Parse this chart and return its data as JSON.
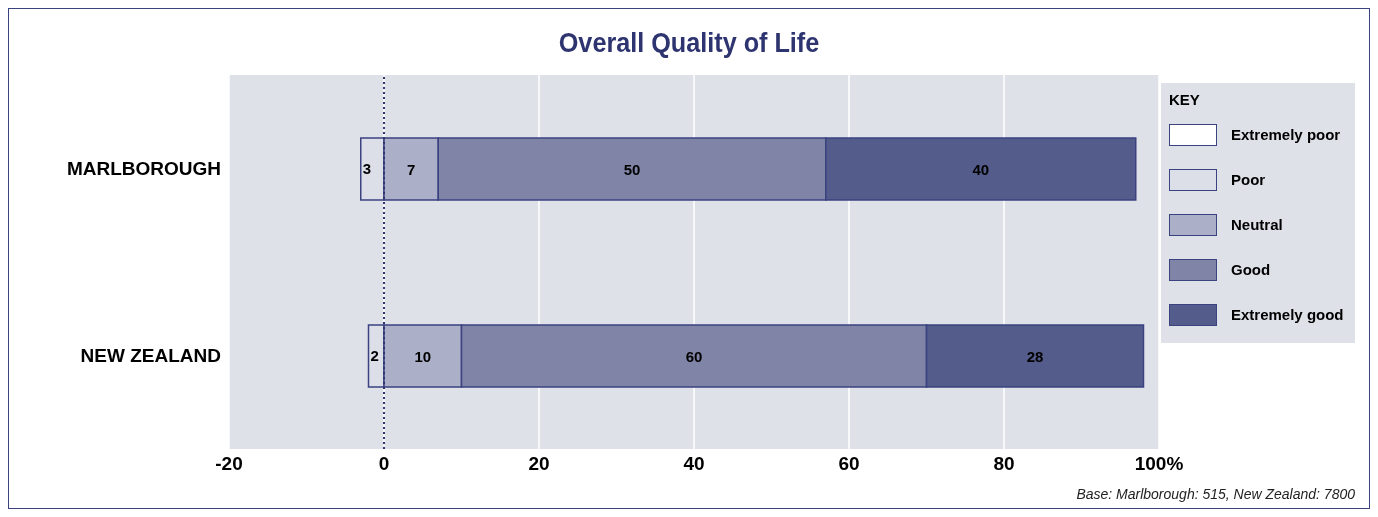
{
  "chart_data": {
    "type": "bar",
    "orientation": "horizontal",
    "stacked": true,
    "title": "Overall Quality of Life",
    "legend_title": "KEY",
    "legend": "right",
    "categories": [
      "MARLBOROUGH",
      "NEW ZEALAND"
    ],
    "series": [
      {
        "name": "Extremely poor",
        "color": "#ffffff",
        "values": [
          0,
          0
        ],
        "value_labels": [
          null,
          null
        ]
      },
      {
        "name": "Poor",
        "color": "#dcdee8",
        "values": [
          -3,
          -2
        ],
        "value_labels": [
          null,
          null
        ]
      },
      {
        "name": "Neutral",
        "color": "#abafc7",
        "values": [
          7,
          10
        ],
        "value_labels": [
          "7",
          "10"
        ]
      },
      {
        "name": "Good",
        "color": "#8085a8",
        "values": [
          50,
          60
        ],
        "value_labels": [
          "50",
          "60"
        ]
      },
      {
        "name": "Extremely good",
        "color": "#535c8a",
        "values": [
          40,
          28
        ],
        "value_labels": [
          "40",
          "28"
        ]
      }
    ],
    "xlim": [
      -20,
      100
    ],
    "xticks": [
      -20,
      0,
      20,
      40,
      60,
      80,
      {
        "value": 100,
        "label": "100%"
      }
    ],
    "grid": "x",
    "ref_lines": [
      {
        "axis": "x",
        "value": 0,
        "line_style": "dotted",
        "color": "#2e3470"
      }
    ],
    "annotations": [
      {
        "text": "3",
        "x": -3,
        "y": "MARLBOROUGH"
      },
      {
        "text": "2",
        "x": -2,
        "y": "NEW ZEALAND"
      },
      "Base:  Marlborough: 515, New Zealand: 7800"
    ]
  }
}
